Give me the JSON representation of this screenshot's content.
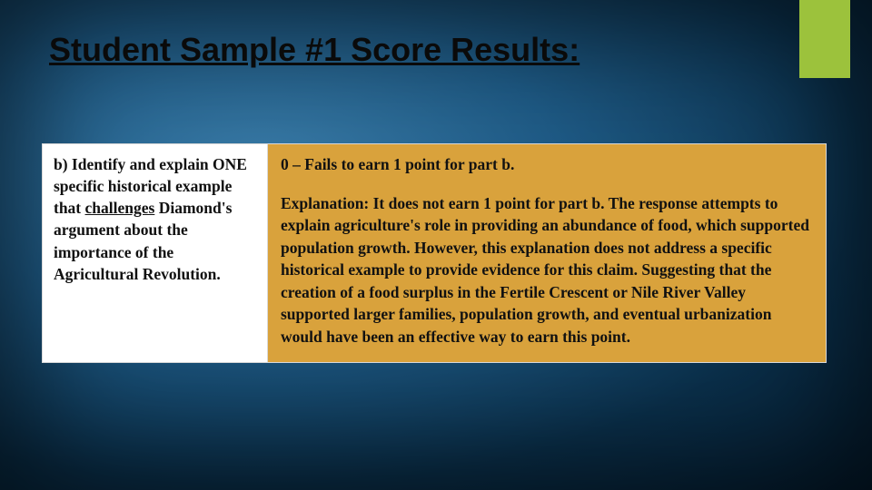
{
  "accent_color": "#9cc23c",
  "background": {
    "gradient_center": "#3a7ca8",
    "gradient_edge": "#051c2f"
  },
  "title": "Student Sample #1 Score Results:",
  "table": {
    "left_cell_bg": "#ffffff",
    "right_cell_bg": "#d9a23c",
    "border_color": "#d9d9d9",
    "prompt_prefix": "b) Identify and explain ONE specific historical example that ",
    "prompt_underlined": "challenges",
    "prompt_suffix": " Diamond's argument about the importance of the Agricultural Revolution.",
    "score_line": "0 – Fails to earn 1 point for part b.",
    "explanation": "Explanation: It does not earn 1 point for part b. The response attempts to explain agriculture's role in providing an abundance of food, which supported population growth. However, this explanation does not address a specific historical example to provide evidence for this claim. Suggesting that the creation of a food surplus in the Fertile Crescent or Nile River Valley supported larger families, population growth, and eventual urbanization would have been an effective way to earn this point."
  },
  "fonts": {
    "title_family": "Arial",
    "title_size_pt": 27,
    "body_family": "Georgia",
    "body_size_pt": 13
  }
}
